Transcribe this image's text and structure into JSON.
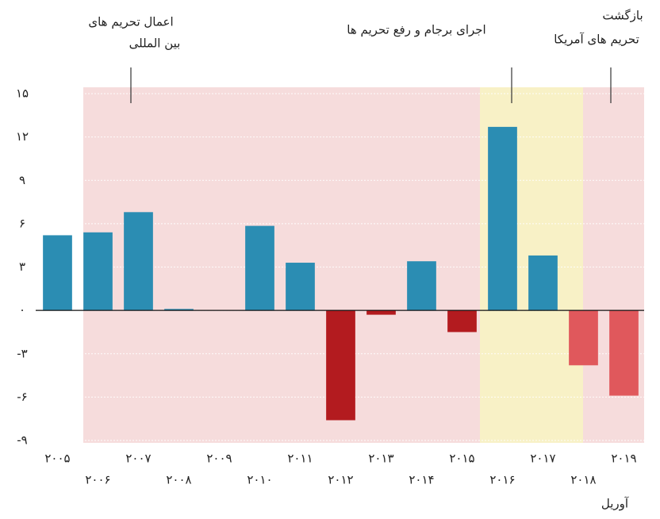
{
  "chart_data": {
    "type": "bar",
    "categories": [
      "۲۰۰۵",
      "۲۰۰۶",
      "۲۰۰۷",
      "۲۰۰۸",
      "۲۰۰۹",
      "۲۰۱۰",
      "۲۰۱۱",
      "۲۰۱۲",
      "۲۰۱۳",
      "۲۰۱۴",
      "۲۰۱۵",
      "۲۰۱۶",
      "۲۰۱۷",
      "۲۰۱۸",
      "۲۰۱۹"
    ],
    "values": [
      5.2,
      5.4,
      6.8,
      0.1,
      0,
      5.85,
      3.3,
      -7.6,
      -0.3,
      3.4,
      -1.5,
      12.7,
      3.8,
      -3.8,
      -5.9
    ],
    "colors": [
      "#2b8db3",
      "#2b8db3",
      "#2b8db3",
      "#2b8db3",
      "#2b8db3",
      "#2b8db3",
      "#2b8db3",
      "#b31b1f",
      "#b31b1f",
      "#2b8db3",
      "#b31b1f",
      "#2b8db3",
      "#2b8db3",
      "#e0585c",
      "#e0585c"
    ],
    "ylim": [
      -9,
      15
    ],
    "yticks": [
      {
        "value": -9,
        "label": "-۹"
      },
      {
        "value": -6,
        "label": "-۶"
      },
      {
        "value": -3,
        "label": "-۳"
      },
      {
        "value": 0,
        "label": "۰"
      },
      {
        "value": 3,
        "label": "۳"
      },
      {
        "value": 6,
        "label": "۶"
      },
      {
        "value": 9,
        "label": "۹"
      },
      {
        "value": 12,
        "label": "۱۲"
      },
      {
        "value": 15,
        "label": "۱۵"
      }
    ],
    "grid": true,
    "x_label": "آوریل",
    "annotations": [
      {
        "lines": [
          "اعمال تحریم های",
          "بین المللی"
        ]
      },
      {
        "lines": [
          "اجرای برجام و رفع تحریم ها"
        ]
      },
      {
        "lines": [
          "بازگشت",
          "تحریم های آمریکا"
        ]
      }
    ]
  }
}
